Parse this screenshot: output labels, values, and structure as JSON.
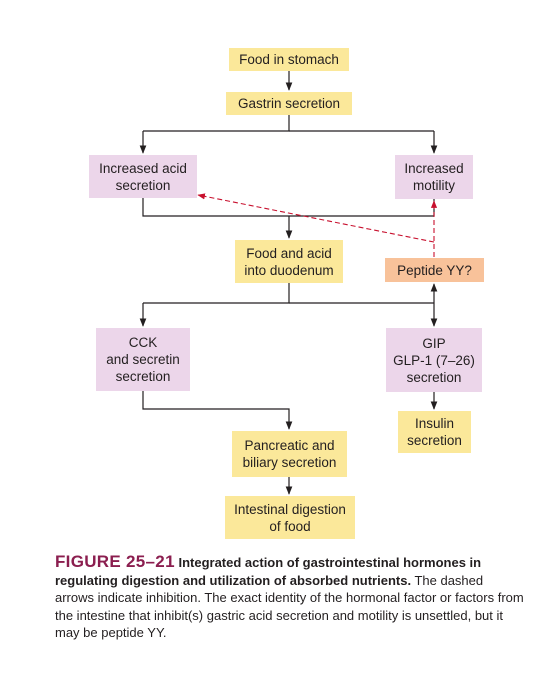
{
  "boxes": {
    "food_in_stomach": "Food in stomach",
    "gastrin_secretion": "Gastrin secretion",
    "increased_acid_secretion": "Increased acid\nsecretion",
    "increased_motility": "Increased\nmotility",
    "food_acid_duodenum": "Food and acid\ninto duodenum",
    "peptide_yy": "Peptide YY?",
    "cck_secretin": "CCK\nand secretin\nsecretion",
    "gip_glp1": "GIP\nGLP-1 (7–26)\nsecretion",
    "insulin_secretion": "Insulin\nsecretion",
    "pancreatic_biliary": "Pancreatic and\nbiliary secretion",
    "intestinal_digestion": "Intestinal digestion\nof food"
  },
  "caption": {
    "figure_number": "FIGURE 25–21",
    "title": "Integrated action of gastrointestinal hormones in regulating digestion and utilization of absorbed nutrients.",
    "body": "The dashed arrows indicate inhibition. The exact identity of the hormonal factor or factors from the intestine that inhibit(s) gastric acid secretion and motility is unsettled, but it may be peptide YY."
  },
  "colors": {
    "stimulating_box": "#fbe89a",
    "hormone_box": "#ecd6ea",
    "inhibitor_box": "#f8c29a",
    "inhibition_arrow": "#c8102e",
    "figure_number": "#8b1e4f"
  }
}
